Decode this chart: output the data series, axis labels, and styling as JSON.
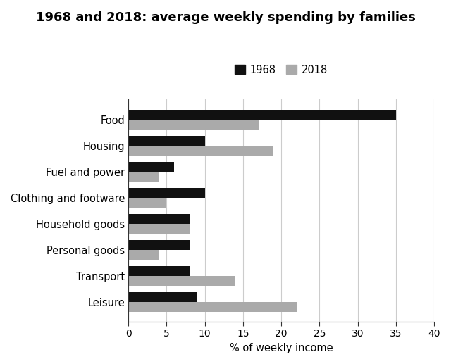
{
  "title": "1968 and 2018: average weekly spending by families",
  "categories": [
    "Food",
    "Housing",
    "Fuel and power",
    "Clothing and footware",
    "Household goods",
    "Personal goods",
    "Transport",
    "Leisure"
  ],
  "values_1968": [
    35,
    10,
    6,
    10,
    8,
    8,
    8,
    9
  ],
  "values_2018": [
    17,
    19,
    4,
    5,
    8,
    4,
    14,
    22
  ],
  "color_1968": "#111111",
  "color_2018": "#aaaaaa",
  "xlabel": "% of weekly income",
  "xlim": [
    0,
    40
  ],
  "xticks": [
    0,
    5,
    10,
    15,
    20,
    25,
    30,
    35,
    40
  ],
  "legend_labels": [
    "1968",
    "2018"
  ],
  "bar_height": 0.38,
  "title_fontsize": 13,
  "label_fontsize": 10.5,
  "tick_fontsize": 10,
  "background_color": "#ffffff"
}
